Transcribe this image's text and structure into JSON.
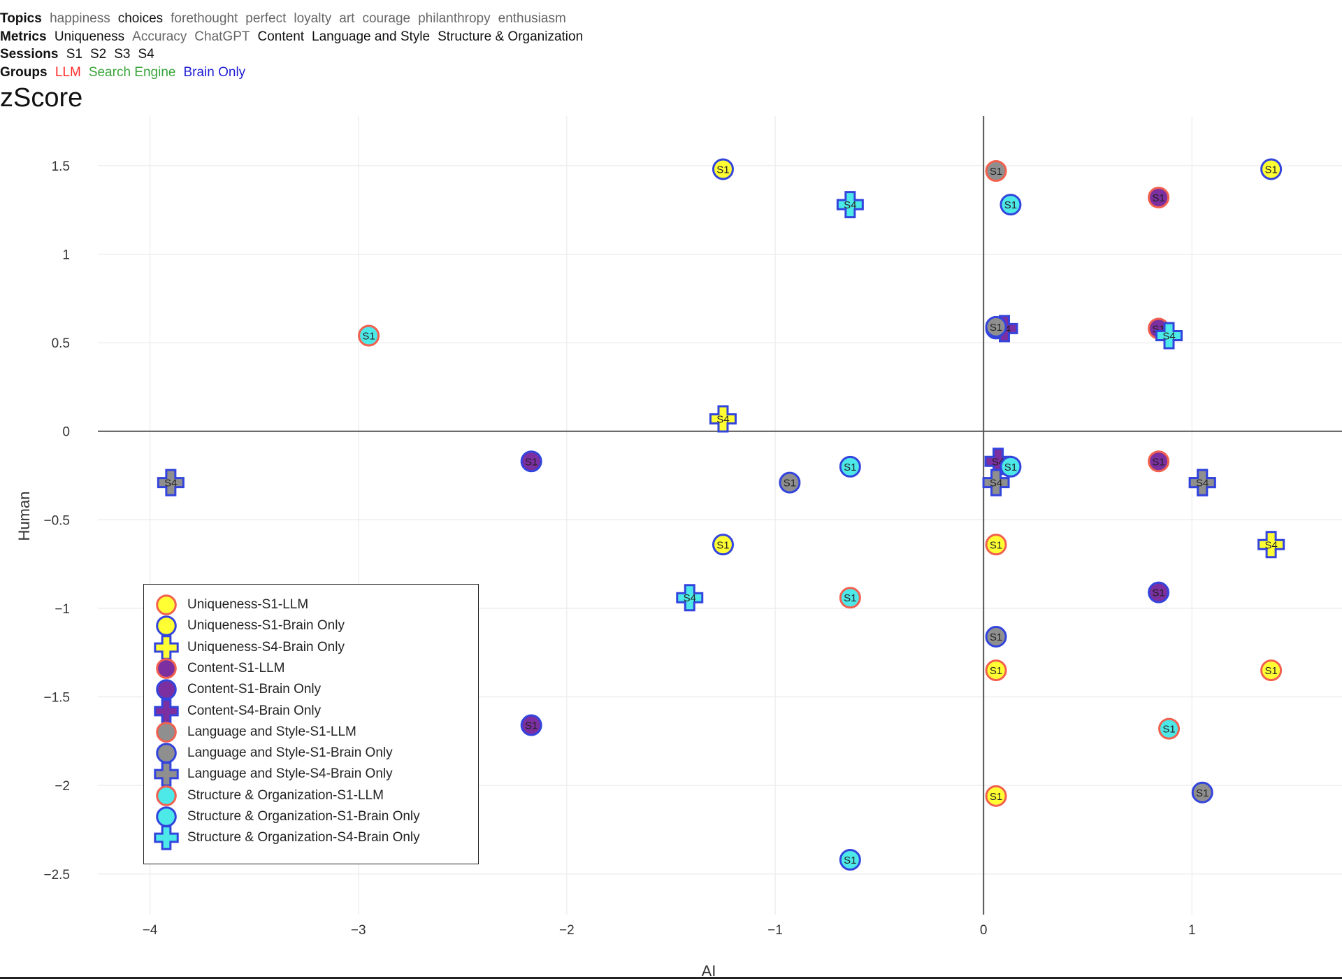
{
  "filters": {
    "topics": {
      "label": "Topics",
      "options": [
        {
          "text": "happiness",
          "on": false
        },
        {
          "text": "choices",
          "on": true
        },
        {
          "text": "forethought",
          "on": false
        },
        {
          "text": "perfect",
          "on": false
        },
        {
          "text": "loyalty",
          "on": false
        },
        {
          "text": "art",
          "on": false
        },
        {
          "text": "courage",
          "on": false
        },
        {
          "text": "philanthropy",
          "on": false
        },
        {
          "text": "enthusiasm",
          "on": false
        }
      ]
    },
    "metrics": {
      "label": "Metrics",
      "options": [
        {
          "text": "Uniqueness",
          "on": true
        },
        {
          "text": "Accuracy",
          "on": false
        },
        {
          "text": "ChatGPT",
          "on": false
        },
        {
          "text": "Content",
          "on": true
        },
        {
          "text": "Language and Style",
          "on": true
        },
        {
          "text": "Structure & Organization",
          "on": true
        }
      ]
    },
    "sessions": {
      "label": "Sessions",
      "options": [
        {
          "text": "S1",
          "on": true
        },
        {
          "text": "S2",
          "on": true
        },
        {
          "text": "S3",
          "on": true
        },
        {
          "text": "S4",
          "on": true
        }
      ]
    },
    "groups": {
      "label": "Groups",
      "options": [
        {
          "text": "LLM",
          "on": true,
          "color": "#ff2a2a"
        },
        {
          "text": "Search Engine",
          "on": true,
          "color": "#3aa53a"
        },
        {
          "text": "Brain Only",
          "on": true,
          "color": "#1f1fd6"
        }
      ]
    }
  },
  "chart_title": "zScore",
  "chart_data": {
    "type": "scatter",
    "xlabel": "AI",
    "ylabel": "Human",
    "xlim": [
      -4.25,
      1.72
    ],
    "ylim": [
      -2.73,
      1.78
    ],
    "x_ticks": [
      -4,
      -3,
      -2,
      -1,
      0,
      1
    ],
    "y_ticks": [
      1.5,
      1,
      0.5,
      0,
      -0.5,
      -1,
      -1.5,
      -2,
      -2.5
    ],
    "grid": true,
    "legend_position": "bottom-left",
    "marker_fill": {
      "Uniqueness": "#ffff33",
      "Content": "#7b2fa0",
      "Language and Style": "#8f8f8f",
      "Structure & Organization": "#4de8e8"
    },
    "marker_outline": {
      "LLM": "#f2604f",
      "Brain Only": "#3344dd"
    },
    "series": [
      {
        "name": "Uniqueness-S1-LLM",
        "metric": "Uniqueness",
        "group": "LLM",
        "symbol": "circle",
        "label": "S1",
        "points": [
          [
            0.06,
            -0.64
          ],
          [
            0.06,
            -1.35
          ],
          [
            0.06,
            -2.06
          ],
          [
            1.38,
            -1.35
          ]
        ]
      },
      {
        "name": "Uniqueness-S1-Brain Only",
        "metric": "Uniqueness",
        "group": "Brain Only",
        "symbol": "circle",
        "label": "S1",
        "points": [
          [
            -1.25,
            1.48
          ],
          [
            1.38,
            1.48
          ],
          [
            -1.25,
            -0.64
          ]
        ]
      },
      {
        "name": "Uniqueness-S4-Brain Only",
        "metric": "Uniqueness",
        "group": "Brain Only",
        "symbol": "cross",
        "label": "S4",
        "points": [
          [
            -1.25,
            0.07
          ],
          [
            1.38,
            -0.64
          ]
        ]
      },
      {
        "name": "Content-S1-LLM",
        "metric": "Content",
        "group": "LLM",
        "symbol": "circle",
        "label": "S1",
        "points": [
          [
            0.84,
            1.32
          ],
          [
            0.84,
            0.58
          ],
          [
            0.84,
            -0.17
          ]
        ]
      },
      {
        "name": "Content-S1-Brain Only",
        "metric": "Content",
        "group": "Brain Only",
        "symbol": "circle",
        "label": "S1",
        "points": [
          [
            -2.17,
            -0.17
          ],
          [
            -2.17,
            -1.66
          ],
          [
            0.84,
            -0.91
          ],
          [
            0.06,
            0.58
          ]
        ]
      },
      {
        "name": "Content-S4-Brain Only",
        "metric": "Content",
        "group": "Brain Only",
        "symbol": "cross",
        "label": "S4",
        "points": [
          [
            0.1,
            0.58
          ],
          [
            0.07,
            -0.17
          ],
          [
            1.05,
            -0.29
          ]
        ]
      },
      {
        "name": "Language and Style-S1-LLM",
        "metric": "Language and Style",
        "group": "LLM",
        "symbol": "circle",
        "label": "S1",
        "points": [
          [
            0.06,
            1.47
          ]
        ]
      },
      {
        "name": "Language and Style-S1-Brain Only",
        "metric": "Language and Style",
        "group": "Brain Only",
        "symbol": "circle",
        "label": "S1",
        "points": [
          [
            0.06,
            0.59
          ],
          [
            -0.93,
            -0.29
          ],
          [
            0.06,
            -1.16
          ],
          [
            1.05,
            -2.04
          ]
        ]
      },
      {
        "name": "Language and Style-S4-Brain Only",
        "metric": "Language and Style",
        "group": "Brain Only",
        "symbol": "cross",
        "label": "S4",
        "points": [
          [
            -3.9,
            -0.29
          ],
          [
            0.06,
            -0.29
          ],
          [
            1.05,
            -0.29
          ]
        ]
      },
      {
        "name": "Structure & Organization-S1-LLM",
        "metric": "Structure & Organization",
        "group": "LLM",
        "symbol": "circle",
        "label": "S1",
        "points": [
          [
            -2.95,
            0.54
          ],
          [
            -0.64,
            -0.94
          ],
          [
            0.89,
            -1.68
          ]
        ]
      },
      {
        "name": "Structure & Organization-S1-Brain Only",
        "metric": "Structure & Organization",
        "group": "Brain Only",
        "symbol": "circle",
        "label": "S1",
        "points": [
          [
            0.13,
            1.28
          ],
          [
            -0.64,
            -0.2
          ],
          [
            0.13,
            -0.2
          ],
          [
            -0.64,
            -2.42
          ]
        ]
      },
      {
        "name": "Structure & Organization-S4-Brain Only",
        "metric": "Structure & Organization",
        "group": "Brain Only",
        "symbol": "cross",
        "label": "S4",
        "points": [
          [
            -0.64,
            1.28
          ],
          [
            0.89,
            0.54
          ],
          [
            -1.41,
            -0.94
          ]
        ]
      }
    ]
  }
}
